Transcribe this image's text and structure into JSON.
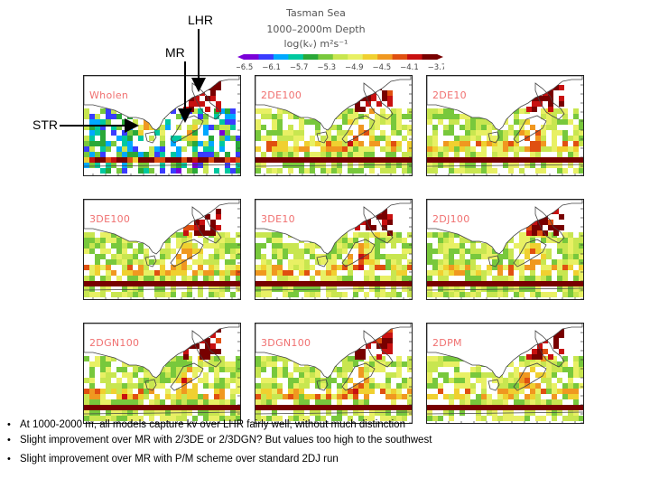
{
  "header": {
    "line1": "Tasman Sea",
    "line2": "1000–2000m Depth",
    "line3": "log(kᵥ) m²s⁻¹"
  },
  "annotations": {
    "lhr": "LHR",
    "mr": "MR",
    "str": "STR"
  },
  "colors": {
    "scale": [
      "#7a00d8",
      "#3a3cff",
      "#00a8ff",
      "#00c8a0",
      "#2aa838",
      "#78c83c",
      "#c8e650",
      "#e8f064",
      "#f0d030",
      "#f09820",
      "#e05010",
      "#c81010",
      "#780000"
    ]
  },
  "chart_data": {
    "type": "heatmap",
    "colorbar": {
      "ticks": [
        "-6.5",
        "-6.1",
        "-5.7",
        "-5.3",
        "-4.9",
        "-4.5",
        "-4.1",
        "-3.7"
      ],
      "range": [
        -6.5,
        -3.7
      ]
    },
    "panels": [
      {
        "label": "Wholen",
        "mode": "obs"
      },
      {
        "label": "2DE100",
        "mode": "model"
      },
      {
        "label": "2DE10",
        "mode": "model"
      },
      {
        "label": "3DE100",
        "mode": "model"
      },
      {
        "label": "3DE10",
        "mode": "model"
      },
      {
        "label": "2DJ100",
        "mode": "model"
      },
      {
        "label": "2DGN100",
        "mode": "model"
      },
      {
        "label": "3DGN100",
        "mode": "model"
      },
      {
        "label": "2DPM",
        "mode": "model"
      }
    ]
  },
  "notes": [
    "At 1000-2000 m, all models capture kv over LHR fairly well, without much distinction",
    "Slight improvement over MR with 2/3DE or 2/3DGN? But values too high to the southwest",
    "Slight improvement over MR with P/M scheme over standard 2DJ run"
  ]
}
